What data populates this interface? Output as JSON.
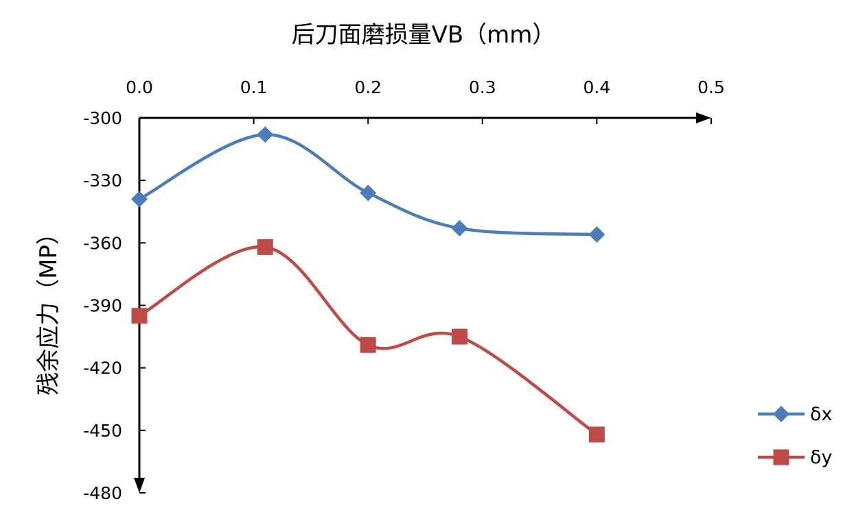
{
  "chart_data": {
    "type": "line",
    "title": "",
    "xlabel": "后刀面磨损量VB（mm）",
    "ylabel": "残余应力（MP）",
    "x": [
      0.0,
      0.11,
      0.2,
      0.28,
      0.4
    ],
    "xlim": [
      0.0,
      0.5
    ],
    "ylim": [
      -480,
      -300
    ],
    "x_ticks": [
      0.0,
      0.1,
      0.2,
      0.3,
      0.4,
      0.5
    ],
    "x_tick_labels": [
      "0.0",
      "0.1",
      "0.2",
      "0.3",
      "0.4",
      "0.5"
    ],
    "y_ticks": [
      -300,
      -330,
      -360,
      -390,
      -420,
      -450,
      -480
    ],
    "y_tick_labels": [
      "-300",
      "-330",
      "-360",
      "-390",
      "-420",
      "-450",
      "-480"
    ],
    "x_axis_position": "top",
    "y_axis_inverted": true,
    "grid": false,
    "legend_position": "right",
    "series": [
      {
        "name": "δx",
        "values": [
          -339,
          -308,
          -336,
          -353,
          -356
        ],
        "color": "#4a7ebb",
        "marker": "diamond"
      },
      {
        "name": "δy",
        "values": [
          -395,
          -362,
          -409,
          -405,
          -452
        ],
        "color": "#be4b48",
        "marker": "square"
      }
    ]
  }
}
